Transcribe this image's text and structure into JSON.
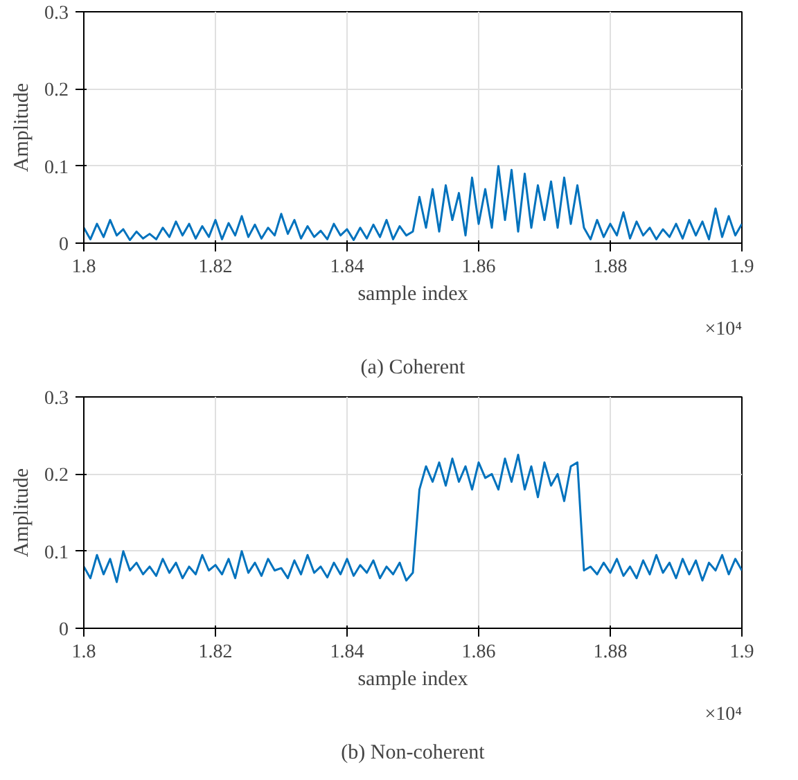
{
  "chart_data": [
    {
      "type": "line",
      "title": "(a) Coherent",
      "xlabel": "sample index",
      "ylabel": "Amplitude",
      "annotations": [
        "×10⁴"
      ],
      "grid": true,
      "xlim": [
        1.8,
        1.9
      ],
      "ylim": [
        0,
        0.3
      ],
      "xticks": [
        1.8,
        1.82,
        1.84,
        1.86,
        1.88,
        1.9
      ],
      "yticks": [
        0,
        0.1,
        0.2,
        0.3
      ],
      "x": [
        1.8,
        1.801,
        1.802,
        1.803,
        1.804,
        1.805,
        1.806,
        1.807,
        1.808,
        1.809,
        1.81,
        1.811,
        1.812,
        1.813,
        1.814,
        1.815,
        1.816,
        1.817,
        1.818,
        1.819,
        1.82,
        1.821,
        1.822,
        1.823,
        1.824,
        1.825,
        1.826,
        1.827,
        1.828,
        1.829,
        1.83,
        1.831,
        1.832,
        1.833,
        1.834,
        1.835,
        1.836,
        1.837,
        1.838,
        1.839,
        1.84,
        1.841,
        1.842,
        1.843,
        1.844,
        1.845,
        1.846,
        1.847,
        1.848,
        1.849,
        1.85,
        1.851,
        1.852,
        1.853,
        1.854,
        1.855,
        1.856,
        1.857,
        1.858,
        1.859,
        1.86,
        1.861,
        1.862,
        1.863,
        1.864,
        1.865,
        1.866,
        1.867,
        1.868,
        1.869,
        1.87,
        1.871,
        1.872,
        1.873,
        1.874,
        1.875,
        1.876,
        1.877,
        1.878,
        1.879,
        1.88,
        1.881,
        1.882,
        1.883,
        1.884,
        1.885,
        1.886,
        1.887,
        1.888,
        1.889,
        1.89,
        1.891,
        1.892,
        1.893,
        1.894,
        1.895,
        1.896,
        1.897,
        1.898,
        1.899,
        1.9
      ],
      "series": [
        {
          "color": "#0072bd",
          "values": [
            0.02,
            0.005,
            0.025,
            0.008,
            0.03,
            0.01,
            0.018,
            0.004,
            0.015,
            0.006,
            0.012,
            0.005,
            0.02,
            0.008,
            0.028,
            0.01,
            0.025,
            0.006,
            0.022,
            0.008,
            0.03,
            0.005,
            0.026,
            0.01,
            0.035,
            0.008,
            0.024,
            0.006,
            0.02,
            0.01,
            0.038,
            0.012,
            0.03,
            0.006,
            0.022,
            0.008,
            0.016,
            0.005,
            0.025,
            0.01,
            0.018,
            0.004,
            0.02,
            0.006,
            0.024,
            0.008,
            0.03,
            0.005,
            0.022,
            0.01,
            0.015,
            0.06,
            0.02,
            0.07,
            0.015,
            0.075,
            0.03,
            0.065,
            0.01,
            0.085,
            0.025,
            0.07,
            0.02,
            0.1,
            0.03,
            0.095,
            0.015,
            0.09,
            0.02,
            0.075,
            0.03,
            0.08,
            0.02,
            0.085,
            0.025,
            0.075,
            0.02,
            0.005,
            0.03,
            0.008,
            0.025,
            0.01,
            0.04,
            0.006,
            0.028,
            0.01,
            0.02,
            0.005,
            0.018,
            0.008,
            0.025,
            0.006,
            0.03,
            0.01,
            0.028,
            0.005,
            0.045,
            0.008,
            0.035,
            0.01,
            0.025
          ]
        }
      ]
    },
    {
      "type": "line",
      "title": "(b) Non-coherent",
      "xlabel": "sample index",
      "ylabel": "Amplitude",
      "annotations": [
        "×10⁴"
      ],
      "grid": true,
      "xlim": [
        1.8,
        1.9
      ],
      "ylim": [
        0,
        0.3
      ],
      "xticks": [
        1.8,
        1.82,
        1.84,
        1.86,
        1.88,
        1.9
      ],
      "yticks": [
        0,
        0.1,
        0.2,
        0.3
      ],
      "x": [
        1.8,
        1.801,
        1.802,
        1.803,
        1.804,
        1.805,
        1.806,
        1.807,
        1.808,
        1.809,
        1.81,
        1.811,
        1.812,
        1.813,
        1.814,
        1.815,
        1.816,
        1.817,
        1.818,
        1.819,
        1.82,
        1.821,
        1.822,
        1.823,
        1.824,
        1.825,
        1.826,
        1.827,
        1.828,
        1.829,
        1.83,
        1.831,
        1.832,
        1.833,
        1.834,
        1.835,
        1.836,
        1.837,
        1.838,
        1.839,
        1.84,
        1.841,
        1.842,
        1.843,
        1.844,
        1.845,
        1.846,
        1.847,
        1.848,
        1.849,
        1.85,
        1.851,
        1.852,
        1.853,
        1.854,
        1.855,
        1.856,
        1.857,
        1.858,
        1.859,
        1.86,
        1.861,
        1.862,
        1.863,
        1.864,
        1.865,
        1.866,
        1.867,
        1.868,
        1.869,
        1.87,
        1.871,
        1.872,
        1.873,
        1.874,
        1.875,
        1.876,
        1.877,
        1.878,
        1.879,
        1.88,
        1.881,
        1.882,
        1.883,
        1.884,
        1.885,
        1.886,
        1.887,
        1.888,
        1.889,
        1.89,
        1.891,
        1.892,
        1.893,
        1.894,
        1.895,
        1.896,
        1.897,
        1.898,
        1.899,
        1.9
      ],
      "series": [
        {
          "color": "#0072bd",
          "values": [
            0.08,
            0.065,
            0.095,
            0.07,
            0.09,
            0.06,
            0.1,
            0.075,
            0.085,
            0.07,
            0.08,
            0.068,
            0.09,
            0.072,
            0.085,
            0.065,
            0.08,
            0.07,
            0.095,
            0.075,
            0.082,
            0.07,
            0.09,
            0.065,
            0.1,
            0.072,
            0.085,
            0.068,
            0.09,
            0.075,
            0.078,
            0.065,
            0.088,
            0.07,
            0.095,
            0.072,
            0.08,
            0.066,
            0.085,
            0.07,
            0.09,
            0.068,
            0.082,
            0.072,
            0.088,
            0.065,
            0.08,
            0.07,
            0.085,
            0.062,
            0.072,
            0.18,
            0.21,
            0.19,
            0.215,
            0.185,
            0.22,
            0.19,
            0.21,
            0.18,
            0.215,
            0.195,
            0.2,
            0.18,
            0.22,
            0.19,
            0.225,
            0.18,
            0.21,
            0.17,
            0.215,
            0.185,
            0.2,
            0.165,
            0.21,
            0.215,
            0.075,
            0.08,
            0.07,
            0.085,
            0.072,
            0.09,
            0.068,
            0.08,
            0.065,
            0.088,
            0.07,
            0.095,
            0.072,
            0.085,
            0.065,
            0.09,
            0.07,
            0.088,
            0.062,
            0.085,
            0.075,
            0.095,
            0.07,
            0.09,
            0.075
          ]
        }
      ]
    }
  ]
}
